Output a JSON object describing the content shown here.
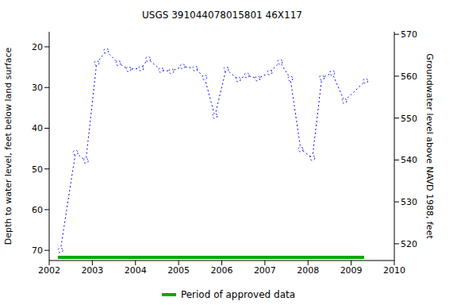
{
  "chart_data": {
    "type": "line",
    "title": "USGS 391044078015801 46X117",
    "x_label": "",
    "y_label": "Depth to water level, feet below land surface",
    "y2_label": "Groundwater level above NAVD 1988, feet",
    "x": [
      2002.26,
      2002.61,
      2002.85,
      2003.1,
      2003.32,
      2003.6,
      2003.84,
      2004.13,
      2004.29,
      2004.59,
      2004.83,
      2005.09,
      2005.38,
      2005.6,
      2005.84,
      2006.1,
      2006.38,
      2006.58,
      2006.83,
      2007.11,
      2007.35,
      2007.59,
      2007.83,
      2008.1,
      2008.32,
      2008.56,
      2008.84,
      2009.33
    ],
    "values": [
      70,
      46,
      48,
      24,
      21,
      24,
      25.5,
      25.3,
      23,
      25.7,
      26,
      24.8,
      25.3,
      27.5,
      37,
      25.5,
      28,
      27,
      27.8,
      26.3,
      23.7,
      27.8,
      45.2,
      47.3,
      27.6,
      26.4,
      33.3,
      28.4
    ],
    "color": "#0000ff",
    "marker": "circle",
    "line_style": "dotted",
    "xlim": [
      2002,
      2010
    ],
    "xticks": [
      2002,
      2003,
      2004,
      2005,
      2006,
      2007,
      2008,
      2009,
      2010
    ],
    "ylim": [
      16.3,
      72.5
    ],
    "yticks": [
      20,
      30,
      40,
      50,
      60,
      70
    ],
    "y2lim": [
      516,
      570.6
    ],
    "y2ticks": [
      520,
      530,
      540,
      550,
      560,
      570
    ],
    "grid": false,
    "legend": "bottom",
    "approved_period": {
      "name": "Period of approved data",
      "color": "#00aa00",
      "x": [
        2002.2,
        2009.3
      ],
      "y": 71.7
    }
  }
}
